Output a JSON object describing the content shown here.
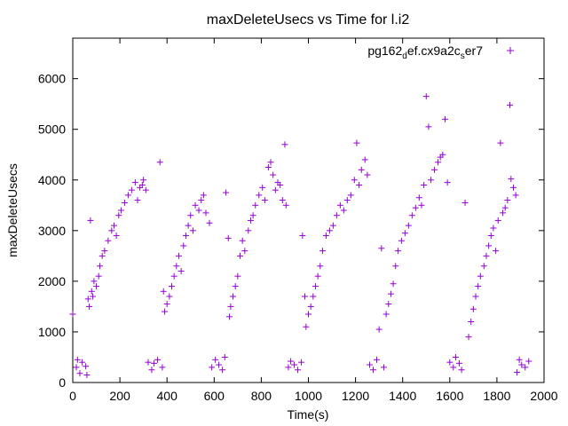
{
  "chart_data": {
    "type": "scatter",
    "title": "maxDeleteUsecs vs Time for l.i2",
    "xlabel": "Time(s)",
    "ylabel": "maxDeleteUsecs",
    "xlim": [
      0,
      2000
    ],
    "ylim": [
      0,
      6800
    ],
    "xticks": [
      0,
      200,
      400,
      600,
      800,
      1000,
      1200,
      1400,
      1600,
      1800,
      2000
    ],
    "yticks": [
      0,
      1000,
      2000,
      3000,
      4000,
      5000,
      6000
    ],
    "grid": false,
    "legend_position": "top-right",
    "marker": "plus",
    "series": [
      {
        "name": "pg162_def.cx9a2c_ser7",
        "color": "#9400D3",
        "points": [
          [
            0,
            1350
          ],
          [
            15,
            300
          ],
          [
            20,
            450
          ],
          [
            30,
            180
          ],
          [
            40,
            400
          ],
          [
            55,
            320
          ],
          [
            60,
            150
          ],
          [
            65,
            1650
          ],
          [
            70,
            1500
          ],
          [
            75,
            3200
          ],
          [
            80,
            1800
          ],
          [
            85,
            1700
          ],
          [
            90,
            2000
          ],
          [
            100,
            1900
          ],
          [
            110,
            2100
          ],
          [
            115,
            2300
          ],
          [
            125,
            2500
          ],
          [
            135,
            2600
          ],
          [
            150,
            2800
          ],
          [
            165,
            3000
          ],
          [
            175,
            3100
          ],
          [
            185,
            2900
          ],
          [
            195,
            3300
          ],
          [
            205,
            3400
          ],
          [
            220,
            3550
          ],
          [
            235,
            3700
          ],
          [
            250,
            3800
          ],
          [
            265,
            3950
          ],
          [
            275,
            3600
          ],
          [
            285,
            3850
          ],
          [
            295,
            3900
          ],
          [
            300,
            4000
          ],
          [
            310,
            3800
          ],
          [
            320,
            400
          ],
          [
            335,
            250
          ],
          [
            345,
            380
          ],
          [
            360,
            450
          ],
          [
            370,
            4350
          ],
          [
            380,
            300
          ],
          [
            385,
            1800
          ],
          [
            390,
            1400
          ],
          [
            400,
            1550
          ],
          [
            410,
            1700
          ],
          [
            420,
            1900
          ],
          [
            430,
            2100
          ],
          [
            440,
            2300
          ],
          [
            450,
            2500
          ],
          [
            460,
            2200
          ],
          [
            470,
            2700
          ],
          [
            480,
            2900
          ],
          [
            490,
            3100
          ],
          [
            500,
            3300
          ],
          [
            510,
            3000
          ],
          [
            520,
            3500
          ],
          [
            535,
            3400
          ],
          [
            545,
            3600
          ],
          [
            555,
            3700
          ],
          [
            565,
            3350
          ],
          [
            580,
            3150
          ],
          [
            590,
            300
          ],
          [
            605,
            450
          ],
          [
            620,
            350
          ],
          [
            635,
            250
          ],
          [
            645,
            500
          ],
          [
            650,
            3750
          ],
          [
            660,
            2850
          ],
          [
            665,
            1300
          ],
          [
            670,
            1500
          ],
          [
            680,
            1700
          ],
          [
            690,
            1900
          ],
          [
            700,
            2100
          ],
          [
            710,
            2500
          ],
          [
            720,
            2800
          ],
          [
            730,
            2600
          ],
          [
            745,
            3000
          ],
          [
            755,
            3200
          ],
          [
            765,
            3300
          ],
          [
            775,
            3500
          ],
          [
            790,
            3700
          ],
          [
            805,
            3850
          ],
          [
            815,
            3600
          ],
          [
            830,
            4250
          ],
          [
            840,
            4350
          ],
          [
            850,
            4100
          ],
          [
            860,
            3800
          ],
          [
            870,
            3950
          ],
          [
            880,
            3900
          ],
          [
            890,
            3600
          ],
          [
            900,
            4700
          ],
          [
            905,
            3500
          ],
          [
            915,
            300
          ],
          [
            925,
            420
          ],
          [
            940,
            350
          ],
          [
            955,
            250
          ],
          [
            970,
            400
          ],
          [
            975,
            2900
          ],
          [
            985,
            1700
          ],
          [
            990,
            1100
          ],
          [
            1000,
            1350
          ],
          [
            1010,
            1500
          ],
          [
            1020,
            1700
          ],
          [
            1030,
            1900
          ],
          [
            1040,
            2100
          ],
          [
            1050,
            2300
          ],
          [
            1060,
            2600
          ],
          [
            1075,
            2900
          ],
          [
            1090,
            3000
          ],
          [
            1105,
            3100
          ],
          [
            1120,
            3300
          ],
          [
            1135,
            3500
          ],
          [
            1150,
            3400
          ],
          [
            1165,
            3600
          ],
          [
            1180,
            3700
          ],
          [
            1195,
            4000
          ],
          [
            1205,
            4730
          ],
          [
            1215,
            3900
          ],
          [
            1225,
            4200
          ],
          [
            1240,
            4400
          ],
          [
            1250,
            4100
          ],
          [
            1260,
            350
          ],
          [
            1275,
            250
          ],
          [
            1290,
            450
          ],
          [
            1300,
            1050
          ],
          [
            1310,
            2650
          ],
          [
            1320,
            300
          ],
          [
            1330,
            1350
          ],
          [
            1340,
            1550
          ],
          [
            1350,
            1750
          ],
          [
            1360,
            1950
          ],
          [
            1370,
            2300
          ],
          [
            1380,
            2600
          ],
          [
            1395,
            2800
          ],
          [
            1410,
            2950
          ],
          [
            1425,
            3100
          ],
          [
            1440,
            3300
          ],
          [
            1455,
            3450
          ],
          [
            1470,
            3650
          ],
          [
            1480,
            3500
          ],
          [
            1490,
            3900
          ],
          [
            1500,
            5650
          ],
          [
            1510,
            5050
          ],
          [
            1520,
            4000
          ],
          [
            1535,
            4200
          ],
          [
            1550,
            4350
          ],
          [
            1560,
            4450
          ],
          [
            1570,
            4500
          ],
          [
            1580,
            5200
          ],
          [
            1590,
            3950
          ],
          [
            1600,
            400
          ],
          [
            1615,
            300
          ],
          [
            1625,
            500
          ],
          [
            1640,
            380
          ],
          [
            1650,
            250
          ],
          [
            1665,
            3550
          ],
          [
            1680,
            900
          ],
          [
            1690,
            1200
          ],
          [
            1700,
            1450
          ],
          [
            1710,
            1700
          ],
          [
            1720,
            1900
          ],
          [
            1730,
            2100
          ],
          [
            1745,
            2300
          ],
          [
            1755,
            2500
          ],
          [
            1765,
            2700
          ],
          [
            1775,
            2900
          ],
          [
            1785,
            3050
          ],
          [
            1795,
            2600
          ],
          [
            1805,
            3200
          ],
          [
            1815,
            4730
          ],
          [
            1825,
            3350
          ],
          [
            1835,
            3450
          ],
          [
            1845,
            3600
          ],
          [
            1855,
            5480
          ],
          [
            1860,
            4020
          ],
          [
            1870,
            3850
          ],
          [
            1880,
            3700
          ],
          [
            1885,
            200
          ],
          [
            1895,
            450
          ],
          [
            1905,
            350
          ],
          [
            1920,
            300
          ],
          [
            1935,
            420
          ]
        ]
      }
    ]
  }
}
